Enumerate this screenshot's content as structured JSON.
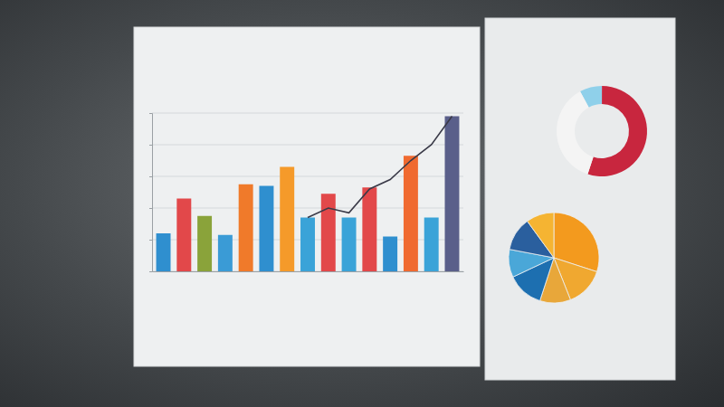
{
  "chart_data": [
    {
      "type": "bar",
      "categories": [
        null,
        null,
        null,
        null,
        null,
        null,
        null,
        null,
        null,
        null,
        null,
        null,
        null,
        null,
        null
      ],
      "series": [
        {
          "type": "bar",
          "colors": [
            "#2f8fcf",
            "#e2484a",
            "#8aa33a",
            "#3a9bd6",
            "#f07a2a",
            "#2f8fcf",
            "#f59a2a",
            "#3aa3d8",
            "#e2484a",
            "#3aa3d8",
            "#e2484a",
            "#2f8fcf",
            "#f06a30",
            "#3aa3d8",
            "#5a5f8a"
          ],
          "values": [
            24,
            46,
            35,
            23,
            55,
            54,
            66,
            34,
            49,
            34,
            53,
            22,
            73,
            34,
            98
          ]
        },
        {
          "type": "line",
          "color": "#3a3a48",
          "values": [
            null,
            null,
            null,
            null,
            null,
            null,
            null,
            34,
            40,
            37,
            52,
            58,
            70,
            80,
            98
          ]
        }
      ],
      "ylim": [
        0,
        100
      ],
      "yticks": [
        0,
        20,
        40,
        60,
        80,
        100
      ],
      "grid": true,
      "tick_labels": false
    },
    {
      "type": "donut",
      "values": [
        8,
        55,
        37
      ],
      "colors": [
        "#8fd0ea",
        "#c8263e",
        "#f4f4f4"
      ],
      "tick_labels": false
    },
    {
      "type": "pie",
      "values": [
        30,
        14,
        11,
        13,
        10,
        12,
        10
      ],
      "colors": [
        "#f39a1e",
        "#f0a830",
        "#e8a73a",
        "#1d6fb0",
        "#4aa7d8",
        "#2a5f9e",
        "#f5b432"
      ],
      "tick_labels": false
    }
  ]
}
